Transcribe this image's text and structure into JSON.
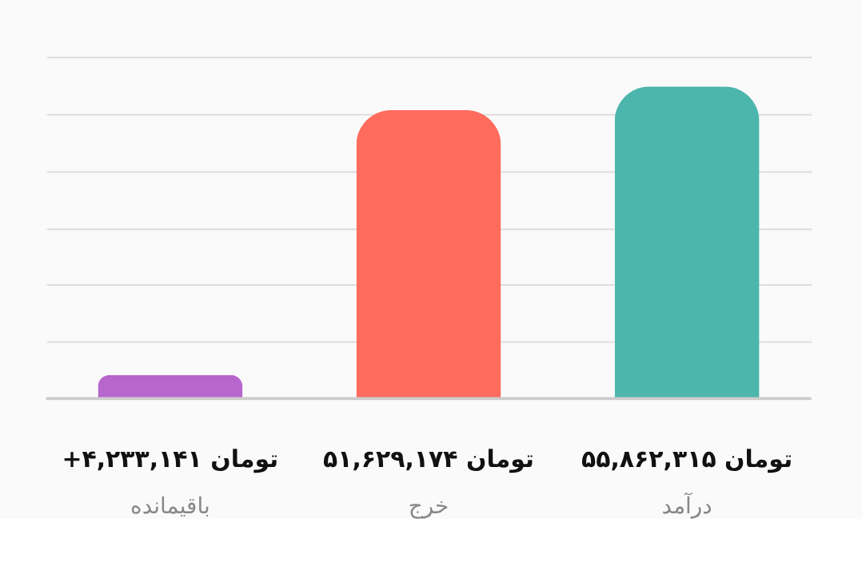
{
  "chart_data": {
    "type": "bar",
    "categories": [
      "باقیمانده",
      "خرج",
      "درآمد"
    ],
    "values": [
      4233141,
      51629174,
      55862315
    ],
    "colors": [
      "#b666cc",
      "#ff6b5d",
      "#4db6ac"
    ],
    "value_labels": [
      "+۴,۲۳۳,۱۴۱ تومان",
      "۵۱,۶۲۹,۱۷۴ تومان",
      "۵۵,۸۶۲,۳۱۵ تومان"
    ],
    "ylim": [
      0,
      61200000
    ],
    "yticks": [
      {
        "value": 0,
        "label": null
      },
      {
        "value": 10200000,
        "label": null
      },
      {
        "value": 20400000,
        "label": null
      },
      {
        "value": 30600000,
        "label": null
      },
      {
        "value": 40800000,
        "label": null
      },
      {
        "value": 51000000,
        "label": null
      },
      {
        "value": 61200000,
        "label": null
      }
    ],
    "grid": "y",
    "tick_labels": "x"
  }
}
